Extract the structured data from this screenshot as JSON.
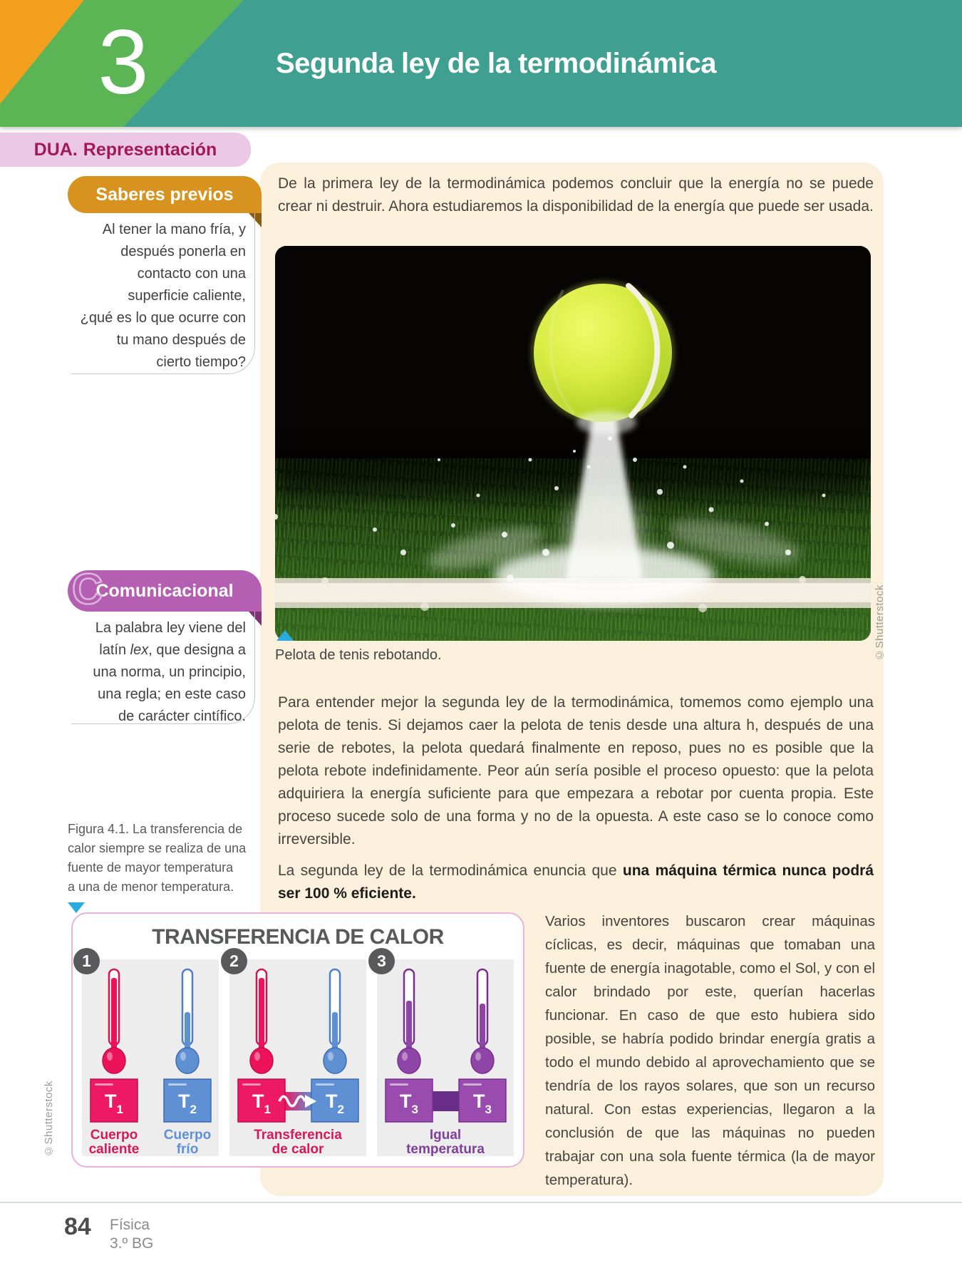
{
  "header": {
    "unit_number": "3",
    "title": "Segunda ley de la termodinámica"
  },
  "dua_band": {
    "label_bold": "DUA.",
    "label_rest": "Representación"
  },
  "sidebar": {
    "saberes": {
      "title": "Saberes previos",
      "lines": [
        "Al tener la mano fría, y",
        "después ponerla en",
        "contacto con una",
        "superficie caliente,",
        "¿qué es lo que ocurre con",
        "tu mano después de",
        "cierto tiempo?"
      ]
    },
    "comunicacional": {
      "title": "Comunicacional",
      "icon_letter": "C",
      "lines": [
        "La palabra ley viene del",
        "latín {lex}, que designa a",
        "una norma, un principio,",
        "una regla; en este caso",
        "de carácter cintífico."
      ]
    },
    "figura": {
      "lines": [
        "Figura 4.1. La transferencia de",
        "calor siempre se realiza de una",
        "fuente de mayor temperatura",
        "a una de menor temperatura."
      ]
    }
  },
  "main": {
    "p1": "De la primera ley de la termodinámica podemos concluir que la energía no se puede crear ni destruir. Ahora estudiaremos la disponibilidad de la energía que puede ser usada.",
    "figure_caption": "Pelota de tenis rebotando.",
    "figure_credit": "©Shutterstock",
    "p2": "Para entender mejor la segunda ley de la termodinámica, tomemos como ejemplo una pelota de tenis. Si dejamos caer la pelota de tenis desde una altura h, después de una serie de rebotes, la pelota quedará finalmente en reposo, pues no es posible que la pelota rebote indefinidamente. Peor aún sería posible el proceso opuesto: que la pelota adquiriera la energía suficiente para que empezara a rebotar por cuenta propia. Este proceso sucede solo de una forma y no de la opuesta. A este caso se lo conoce como irreversible.",
    "p3_normal": "La segunda ley de la termodinámica enuncia que ",
    "p3_bold": "una máquina térmica nunca podrá ser 100 % eficiente.",
    "right_col": "Varios inventores buscaron crear máquinas cíclicas, es decir, máquinas que tomaban una fuente de energía inagotable, como el Sol, y con el calor brindado por este, querían hacerlas funcionar. En caso de que esto hubiera sido posible, se habría podido brindar energía gratis a todo el mundo debido al aprovechamiento que se tendría de los rayos solares, que son un recurso natural. Con estas experiencias, llegaron a la conclusión de que las máquinas no pueden trabajar con una sola fuente térmica (la de mayor temperatura)."
  },
  "diagram": {
    "title": "TRANSFERENCIA DE CALOR",
    "credit": "©Shutterstock",
    "panels": [
      {
        "number": "1",
        "boxes": [
          {
            "label": "T",
            "sub": "1"
          },
          {
            "label": "T",
            "sub": "2"
          }
        ],
        "caption_left": [
          "Cuerpo",
          "caliente"
        ],
        "caption_right": [
          "Cuerpo",
          "frío"
        ]
      },
      {
        "number": "2",
        "boxes": [
          {
            "label": "T",
            "sub": "1"
          },
          {
            "label": "T",
            "sub": "2"
          }
        ],
        "caption": [
          "Transferencia",
          "de calor"
        ]
      },
      {
        "number": "3",
        "boxes": [
          {
            "label": "T",
            "sub": "3"
          },
          {
            "label": "T",
            "sub": "3"
          }
        ],
        "caption": [
          "Igual",
          "temperatura"
        ]
      }
    ]
  },
  "footer": {
    "page_number": "84",
    "subject": "Física",
    "grade": "3.º BG"
  },
  "colors": {
    "teal_header": "#3FA091",
    "green_band": "#5CB554",
    "orange_band": "#F2A01D",
    "dua_pink": "#EAC8E6",
    "dua_text": "#A1195B",
    "saberes_orange": "#D8931E",
    "comunicacional_purple": "#B55FB3",
    "cream_panel": "#FAF0DC",
    "marker_cyan": "#29ABE2",
    "hot_red": "#ED135B",
    "cold_blue": "#6090D4",
    "equal_purple": "#9A4BAE",
    "diagram_border_pink": "#E7B3DD",
    "footer_line": "#CFE3D8"
  }
}
